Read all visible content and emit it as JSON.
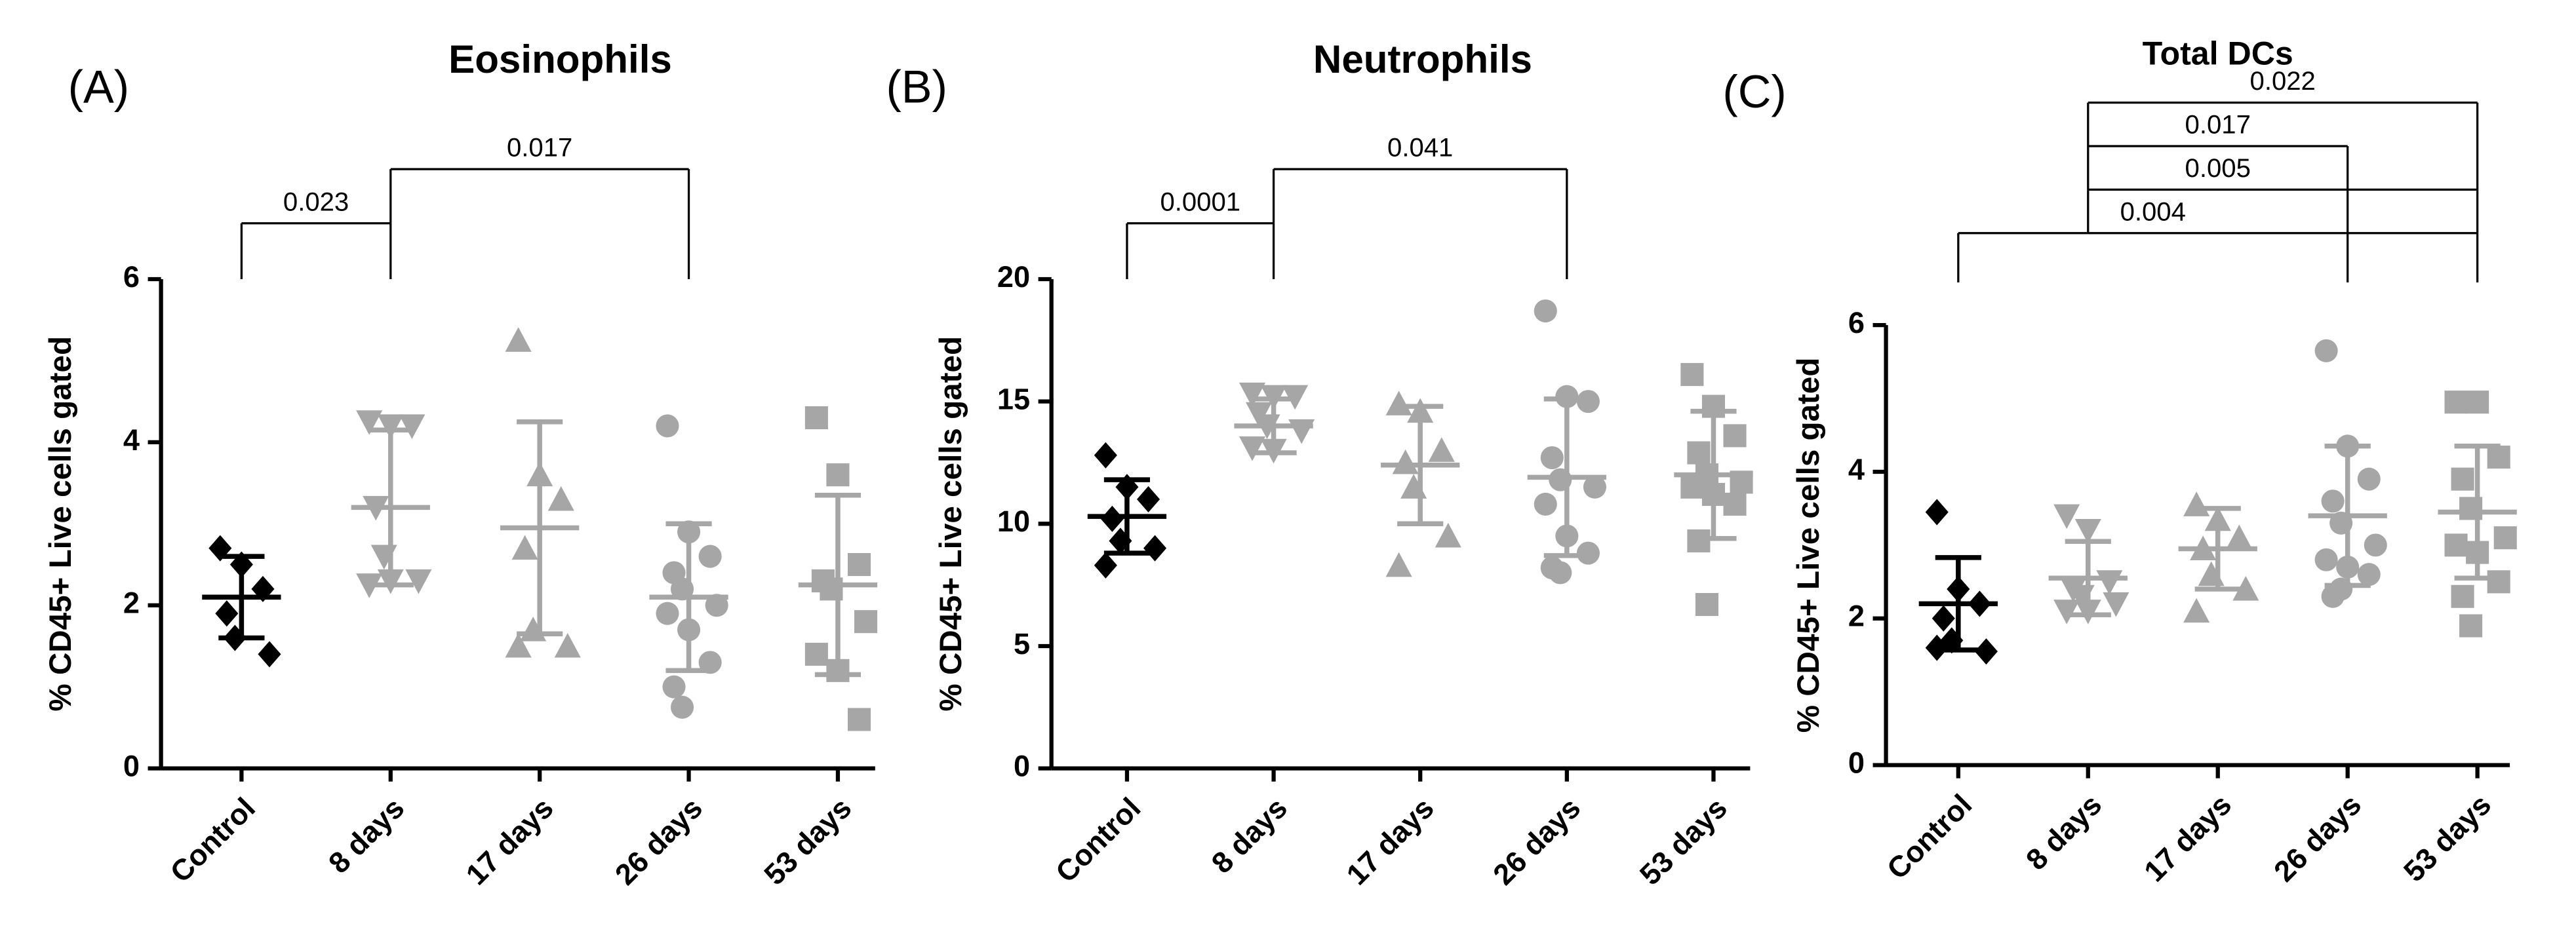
{
  "chart_data": [
    {
      "type": "dot",
      "panel": "(A)",
      "title": "Eosinophils",
      "ylabel": "% CD45+ Live cells gated",
      "categories": [
        "Control",
        "8 days",
        "17 days",
        "26 days",
        "53 days"
      ],
      "colors": [
        "#000000",
        "#a6a6a6",
        "#a6a6a6",
        "#a6a6a6",
        "#a6a6a6"
      ],
      "markers": [
        "diamond",
        "triangle-down",
        "triangle",
        "circle",
        "square"
      ],
      "points": [
        [
          2.7,
          2.5,
          2.2,
          1.9,
          1.6,
          1.4
        ],
        [
          4.25,
          4.2,
          4.2,
          3.2,
          2.6,
          2.3,
          2.25,
          2.3
        ],
        [
          5.25,
          3.6,
          3.3,
          2.7,
          1.7,
          1.5,
          1.5
        ],
        [
          4.2,
          2.9,
          2.6,
          2.4,
          2.2,
          2.0,
          1.9,
          1.7,
          1.3,
          1.0,
          0.75
        ],
        [
          4.3,
          3.6,
          2.5,
          2.3,
          2.2,
          1.8,
          1.4,
          1.2,
          0.6
        ]
      ],
      "means": [
        2.1,
        3.2,
        2.95,
        2.1,
        2.25
      ],
      "sds": [
        0.5,
        0.95,
        1.3,
        0.9,
        1.1
      ],
      "ylim": [
        0,
        6
      ],
      "yticks": [
        0,
        2,
        4,
        6
      ],
      "comparisons": [
        {
          "groups": [
            0,
            1
          ],
          "label": "0.023"
        },
        {
          "groups": [
            1,
            3
          ],
          "label": "0.017"
        }
      ]
    },
    {
      "type": "dot",
      "panel": "(B)",
      "title": "Neutrophils",
      "ylabel": "% CD45+ Live cells gated",
      "categories": [
        "Control",
        "8 days",
        "17 days",
        "26 days",
        "53 days"
      ],
      "colors": [
        "#000000",
        "#a6a6a6",
        "#a6a6a6",
        "#a6a6a6",
        "#a6a6a6"
      ],
      "markers": [
        "diamond",
        "triangle-down",
        "triangle",
        "circle",
        "square"
      ],
      "points": [
        [
          12.8,
          11.5,
          11,
          10.2,
          9.3,
          9,
          8.3
        ],
        [
          15.3,
          15.2,
          15.2,
          14.5,
          14.0,
          13.8,
          13.1,
          13.0
        ],
        [
          14.9,
          14.6,
          13.0,
          12.5,
          11.5,
          9.5,
          8.3
        ],
        [
          18.7,
          15.2,
          15.0,
          12.7,
          11.8,
          11.5,
          10.8,
          9.5,
          8.8,
          8.2,
          8.0
        ],
        [
          16.1,
          14.8,
          13.6,
          12.9,
          12.0,
          11.7,
          11.5,
          11.2,
          10.8,
          9.3,
          6.7
        ]
      ],
      "means": [
        10.3,
        14.0,
        12.4,
        11.9,
        12.0
      ],
      "sds": [
        1.5,
        1.1,
        2.4,
        3.2,
        2.6
      ],
      "ylim": [
        0,
        20
      ],
      "yticks": [
        0,
        5,
        10,
        15,
        20
      ],
      "comparisons": [
        {
          "groups": [
            0,
            1
          ],
          "label": "0.0001"
        },
        {
          "groups": [
            1,
            3
          ],
          "label": "0.041"
        }
      ]
    },
    {
      "type": "dot",
      "panel": "(C)",
      "title": "Total DCs",
      "ylabel": "% CD45+ Live cells gated",
      "categories": [
        "Control",
        "8 days",
        "17 days",
        "26 days",
        "53 days"
      ],
      "colors": [
        "#000000",
        "#a6a6a6",
        "#a6a6a6",
        "#a6a6a6",
        "#a6a6a6"
      ],
      "markers": [
        "diamond",
        "triangle-down",
        "triangle",
        "circle",
        "square"
      ],
      "points": [
        [
          3.45,
          2.4,
          2.2,
          2.0,
          1.7,
          1.55,
          1.6
        ],
        [
          3.4,
          3.2,
          2.5,
          2.4,
          2.3,
          2.2,
          2.1,
          2.1
        ],
        [
          3.55,
          3.35,
          3.1,
          2.95,
          2.6,
          2.4,
          2.1
        ],
        [
          5.65,
          4.35,
          3.9,
          3.6,
          3.3,
          3.0,
          2.8,
          2.7,
          2.6,
          2.3,
          2.4
        ],
        [
          4.95,
          4.95,
          4.2,
          3.9,
          3.5,
          3.1,
          3.0,
          2.9,
          2.5,
          2.3,
          1.9
        ]
      ],
      "means": [
        2.2,
        2.55,
        2.95,
        3.4,
        3.45
      ],
      "sds": [
        0.63,
        0.5,
        0.55,
        0.95,
        0.9
      ],
      "ylim": [
        0,
        6
      ],
      "yticks": [
        0,
        2,
        4,
        6
      ],
      "comparisons": [
        {
          "groups": [
            0,
            3,
            4
          ],
          "label": "0.004"
        },
        {
          "groups": [
            1,
            3,
            4
          ],
          "label": "0.005"
        },
        {
          "groups": [
            1,
            3
          ],
          "label": "0.017"
        },
        {
          "groups": [
            1,
            4
          ],
          "label": "0.022"
        }
      ]
    }
  ]
}
